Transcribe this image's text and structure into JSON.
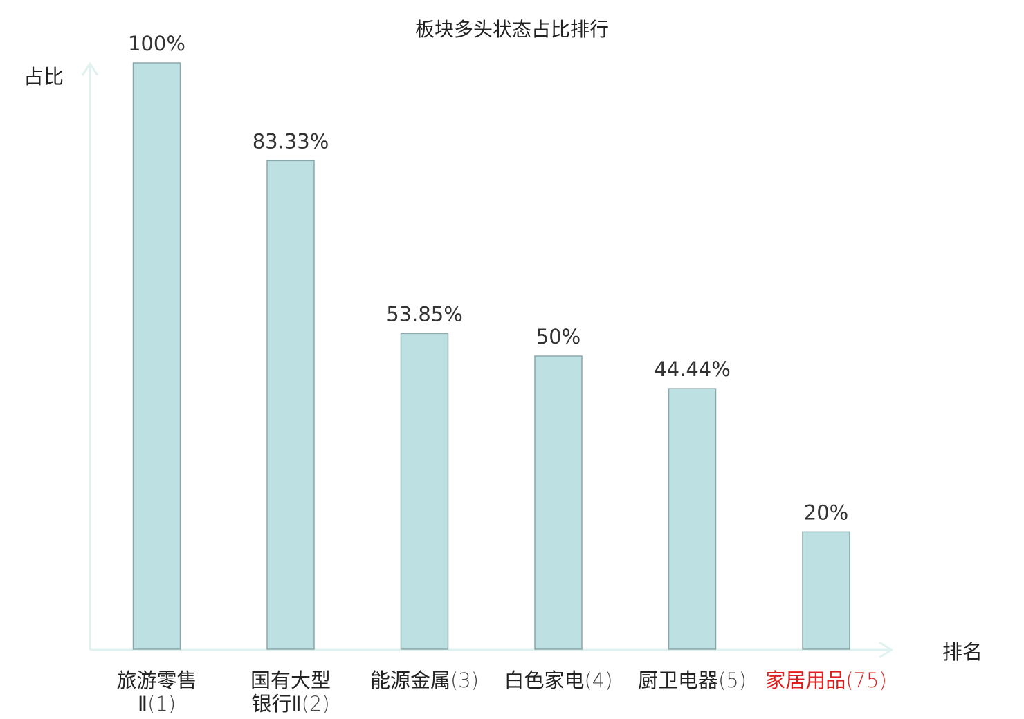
{
  "chart_data": {
    "type": "bar",
    "title": "板块多头状态占比排行",
    "ylabel": "占比",
    "xlabel": "排名",
    "ylim": [
      0,
      100
    ],
    "grid": false,
    "categories": [
      {
        "name_lines": [
          "旅游零售",
          "Ⅱ"
        ],
        "rank": "(1)",
        "highlight": false
      },
      {
        "name_lines": [
          "国有大型",
          "银行Ⅱ"
        ],
        "rank": "(2)",
        "highlight": false
      },
      {
        "name_lines": [
          "能源金属"
        ],
        "rank": "(3)",
        "highlight": false
      },
      {
        "name_lines": [
          "白色家电"
        ],
        "rank": "(4)",
        "highlight": false
      },
      {
        "name_lines": [
          "厨卫电器"
        ],
        "rank": "(5)",
        "highlight": false
      },
      {
        "name_lines": [
          "家居用品"
        ],
        "rank": "(75)",
        "highlight": true
      }
    ],
    "values": [
      100,
      83.33,
      53.85,
      50,
      44.44,
      20
    ],
    "value_labels": [
      "100%",
      "83.33%",
      "53.85%",
      "50%",
      "44.44%",
      "20%"
    ]
  },
  "colors": {
    "bar_fill": "#bde0e3",
    "bar_stroke": "#8aa7aa",
    "axis": "#e0f2ef",
    "text": "#222222",
    "value_label": "#333333",
    "highlight": "#e02020"
  }
}
